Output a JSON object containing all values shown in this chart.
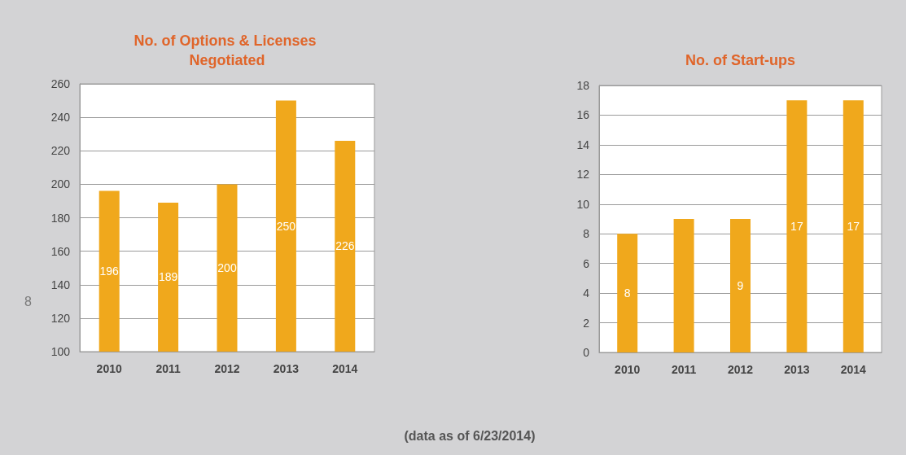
{
  "chart_data": [
    {
      "type": "bar",
      "title": "No. of Options & Licenses Negotiated",
      "categories": [
        "2010",
        "2011",
        "2012",
        "2013",
        "2014"
      ],
      "values": [
        196,
        189,
        200,
        250,
        226
      ],
      "color": "#f0a81c",
      "data_labels": true,
      "ylim": [
        100,
        260
      ],
      "yticks": [
        100,
        120,
        140,
        160,
        180,
        200,
        220,
        240,
        260
      ],
      "grid": "y",
      "annotations": [
        "8"
      ]
    },
    {
      "type": "bar",
      "title": "No. of Start-ups",
      "categories": [
        "2010",
        "2011",
        "2012",
        "2013",
        "2014"
      ],
      "values": [
        8,
        9,
        9,
        17,
        17
      ],
      "value_labels": [
        "8",
        null,
        "9",
        "17",
        "17"
      ],
      "color": "#f0a81c",
      "ylim": [
        0,
        18
      ],
      "yticks": [
        0,
        2,
        4,
        6,
        8,
        10,
        12,
        14,
        16,
        18
      ],
      "grid": "y",
      "annotations": [
        "(data as of 6/23/2014)"
      ]
    }
  ]
}
